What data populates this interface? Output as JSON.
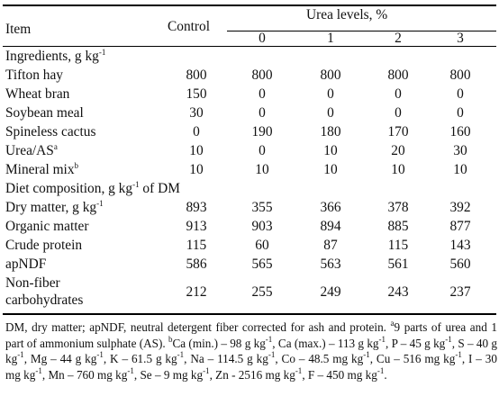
{
  "header": {
    "item": "Item",
    "control": "Control",
    "urea_levels": "Urea levels, %",
    "levels": [
      "0",
      "1",
      "2",
      "3"
    ]
  },
  "sections": {
    "ingredients": {
      "label": "Ingredients, g kg",
      "sup": "-1"
    },
    "composition": {
      "label_a": "Diet composition, g kg",
      "sup": "-1",
      "label_b": " of DM"
    }
  },
  "rows": [
    {
      "label": "Tifton hay",
      "values": [
        "800",
        "800",
        "800",
        "800",
        "800"
      ]
    },
    {
      "label": "Wheat bran",
      "values": [
        "150",
        "0",
        "0",
        "0",
        "0"
      ]
    },
    {
      "label": "Soybean meal",
      "values": [
        "30",
        "0",
        "0",
        "0",
        "0"
      ]
    },
    {
      "label": "Spineless cactus",
      "values": [
        "0",
        "190",
        "180",
        "170",
        "160"
      ]
    },
    {
      "label": "Urea/AS",
      "sup": "a",
      "values": [
        "10",
        "0",
        "10",
        "20",
        "30"
      ]
    },
    {
      "label": "Mineral mix",
      "sup": "b",
      "values": [
        "10",
        "10",
        "10",
        "10",
        "10"
      ]
    },
    {
      "label": "Dry matter, g kg",
      "sup": "-1",
      "values": [
        "893",
        "355",
        "366",
        "378",
        "392"
      ]
    },
    {
      "label": "Organic matter",
      "values": [
        "913",
        "903",
        "894",
        "885",
        "877"
      ]
    },
    {
      "label": "Crude protein",
      "values": [
        "115",
        "60",
        "87",
        "115",
        "143"
      ]
    },
    {
      "label": "apNDF",
      "values": [
        "586",
        "565",
        "563",
        "561",
        "560"
      ]
    },
    {
      "label_line1": "Non-fiber",
      "label_line2": "carbohydrates",
      "values": [
        "212",
        "255",
        "249",
        "243",
        "237"
      ]
    }
  ],
  "footnote": {
    "t1": "DM, dry matter; apNDF, neutral detergent fiber corrected for ash and protein. ",
    "s_a": "a",
    "t2": "9 parts of urea and 1 part of ammonium sulphate (AS). ",
    "s_b": "b",
    "t3": "Ca (min.) – 98 g kg",
    "t4": ", Ca (max.) – 113 g kg",
    "t5": ", P – 45 g kg",
    "t6": ", S – 40 g kg",
    "t7": ", Mg – 44 g kg",
    "t8": ", K – 61.5 g kg",
    "t9": ", Na – 114.5 g kg",
    "t10": ", Co – 48.5 mg kg",
    "t11": ", Cu – 516 mg kg",
    "t12": ", I – 30 mg kg",
    "t13": ", Mn – 760 mg kg",
    "t14": ", Se – 9 mg kg",
    "t15": ", Zn - 2516 mg kg",
    "t16": ", F – 450 mg kg",
    "t17": ".",
    "neg1": "-1"
  }
}
